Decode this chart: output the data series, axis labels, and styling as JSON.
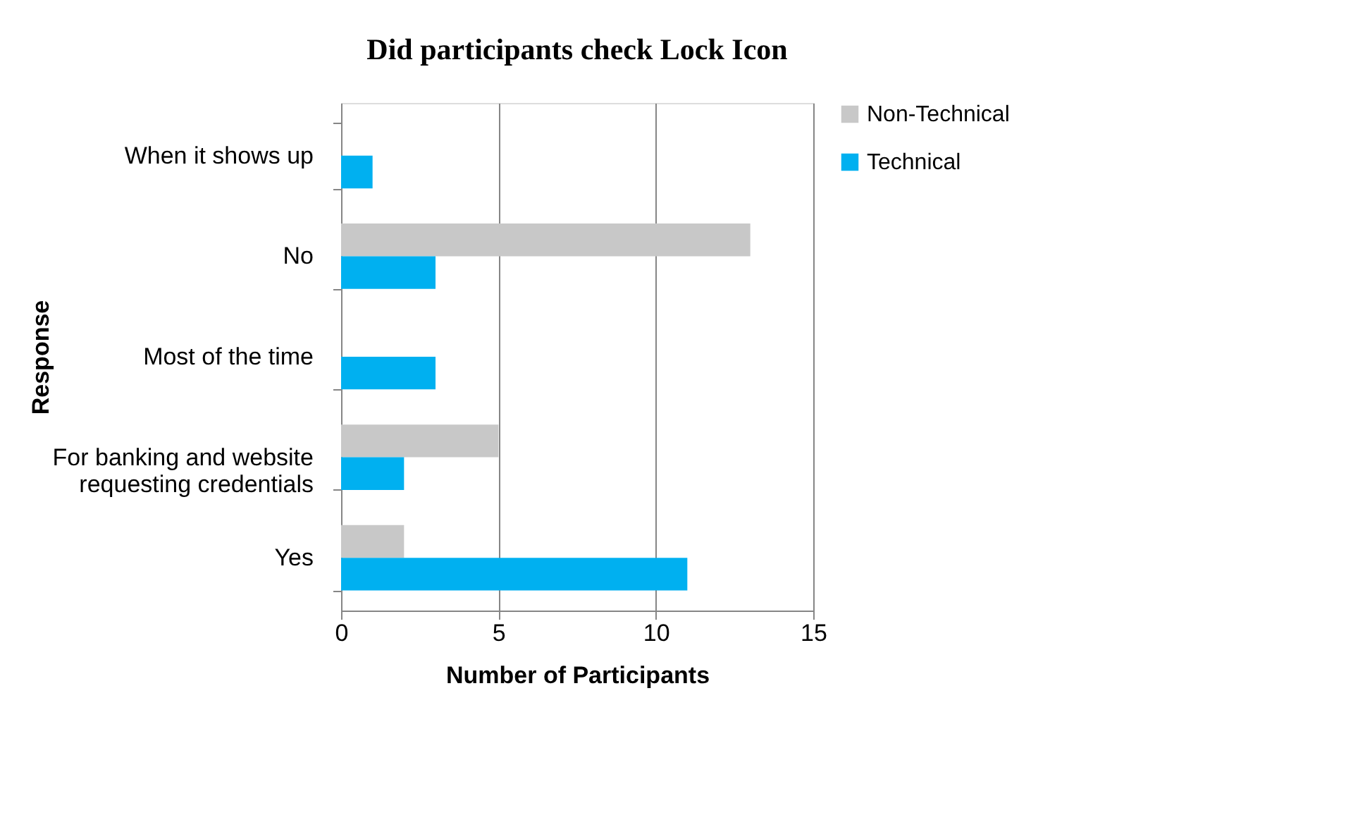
{
  "chart_data": {
    "type": "bar",
    "orientation": "horizontal",
    "title": "Did participants check Lock Icon",
    "xlabel": "Number of Participants",
    "ylabel": "Response",
    "categories": [
      "When it shows up",
      "No",
      "Most of the time",
      "For banking and website requesting credentials",
      "Yes"
    ],
    "series": [
      {
        "name": "Non-Technical",
        "color": "#c8c8c8",
        "values": [
          0,
          13,
          0,
          5,
          2
        ]
      },
      {
        "name": "Technical",
        "color": "#00b0f0",
        "values": [
          1,
          3,
          3,
          2,
          11
        ]
      }
    ],
    "xlim": [
      0,
      15
    ],
    "xticks": [
      0,
      5,
      10,
      15
    ],
    "grid": "x",
    "legend": "right"
  }
}
